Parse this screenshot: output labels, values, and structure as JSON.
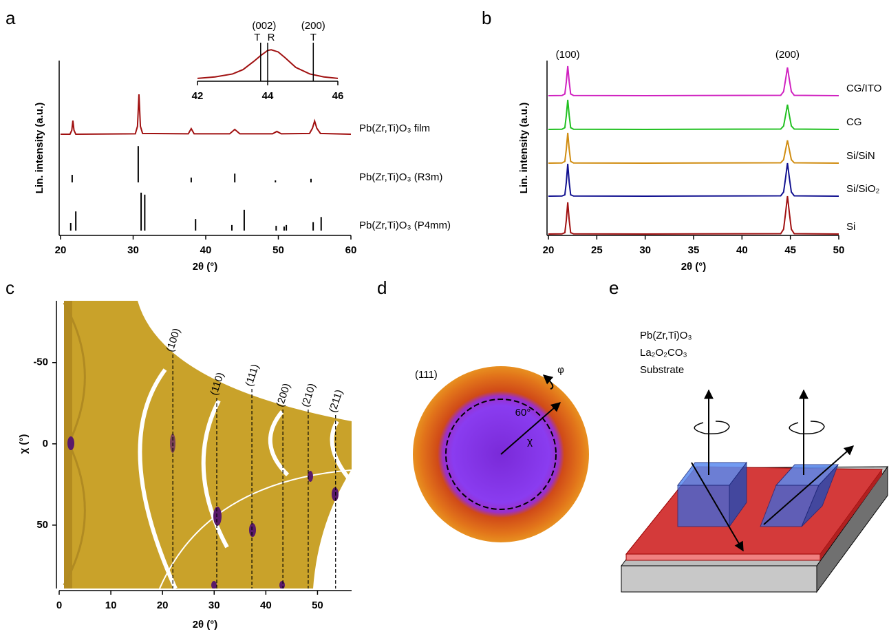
{
  "chart_data": [
    {
      "type": "line",
      "label": "a",
      "xlabel": "2θ (°)",
      "ylabel": "Lin. intensity (a.u.)",
      "xlim": [
        20,
        60
      ],
      "xticks": [
        20,
        30,
        40,
        50,
        60
      ],
      "ylim": [
        0,
        100
      ],
      "series": [
        {
          "name": "Pb(Zr,Ti)O₃ film",
          "color": "#a01010",
          "x": [
            20,
            21.3,
            21.55,
            21.7,
            21.85,
            22.1,
            30.3,
            30.6,
            30.8,
            31,
            31.3,
            37.6,
            38,
            38.4,
            43.3,
            44,
            44.7,
            49.2,
            49.8,
            50.4,
            54.3,
            54.7,
            55,
            55.3,
            55.8,
            60
          ],
          "values": [
            0,
            0,
            10,
            34,
            10,
            0,
            1,
            20,
            100,
            20,
            2,
            1,
            14,
            1,
            1,
            12,
            1,
            1,
            7,
            1,
            2,
            15,
            33,
            15,
            2,
            0
          ]
        }
      ],
      "sticks": [
        {
          "name": "Pb(Zr,Ti)O₃ (R3m)",
          "color": "#000000",
          "x": [
            21.6,
            30.7,
            38,
            44,
            49.6,
            54.5
          ],
          "values": [
            19,
            91,
            12,
            22,
            5,
            9
          ]
        },
        {
          "name": "Pb(Zr,Ti)O₃ (P4mm)",
          "color": "#000000",
          "x": [
            21.4,
            22.1,
            31.1,
            31.6,
            38.6,
            43.6,
            45.3,
            49.7,
            50.8,
            51.1,
            54.8,
            55.9
          ],
          "values": [
            19,
            48,
            95,
            90,
            29,
            14,
            52,
            12,
            10,
            14,
            21,
            34
          ]
        }
      ],
      "inset": {
        "xlim": [
          42,
          46
        ],
        "xticks": [
          42,
          44,
          46
        ],
        "ylim": [
          0,
          45
        ],
        "color": "#a01010",
        "x": [
          42,
          42.5,
          43,
          43.3,
          43.6,
          43.8,
          44,
          44.1,
          44.3,
          44.5,
          44.8,
          45.2,
          45.6,
          46
        ],
        "values": [
          2,
          4,
          8,
          14,
          25,
          33,
          40,
          41,
          38,
          30,
          17,
          8,
          4,
          2
        ],
        "markers": [
          {
            "label": "(002)",
            "lines": [
              {
                "x": 43.8,
                "label": "T"
              },
              {
                "x": 44.0,
                "label": "R"
              }
            ]
          },
          {
            "label": "(200)",
            "lines": [
              {
                "x": 45.3,
                "label": "T"
              }
            ]
          }
        ]
      }
    },
    {
      "type": "line",
      "label": "b",
      "xlabel": "2θ (°)",
      "ylabel": "Lin. intensity (a.u.)",
      "xlim": [
        20,
        50
      ],
      "xticks": [
        20,
        25,
        30,
        35,
        40,
        45,
        50
      ],
      "ylim": [
        0,
        100
      ],
      "annotations": [
        {
          "text": "(100)",
          "x": 22
        },
        {
          "text": "(200)",
          "x": 44.7
        }
      ],
      "series": [
        {
          "name": "Si",
          "color": "#a01010",
          "x": [
            20,
            21.4,
            21.7,
            21.85,
            22,
            22.15,
            22.3,
            22.6,
            30,
            44,
            44.3,
            44.5,
            44.7,
            44.9,
            45.1,
            45.4,
            50
          ],
          "values": [
            0,
            0.5,
            4,
            40,
            92,
            40,
            4,
            0.5,
            0,
            1,
            14,
            60,
            110,
            60,
            14,
            1,
            0
          ]
        },
        {
          "name": "Si/SiO₂",
          "color": "#101090",
          "x": [
            20,
            21.4,
            21.7,
            21.85,
            22,
            22.15,
            22.3,
            22.6,
            30,
            44,
            44.3,
            44.5,
            44.7,
            44.9,
            45.1,
            45.4,
            50
          ],
          "values": [
            0,
            0.5,
            4,
            40,
            94,
            40,
            4,
            0.5,
            0,
            1,
            12,
            52,
            96,
            52,
            12,
            1,
            0
          ]
        },
        {
          "name": "Si/SiN",
          "color": "#d08c10",
          "x": [
            20,
            21.4,
            21.7,
            21.85,
            22,
            22.15,
            22.3,
            22.6,
            30,
            44,
            44.3,
            44.5,
            44.7,
            44.9,
            45.1,
            45.4,
            50
          ],
          "values": [
            0,
            0.5,
            5,
            40,
            88,
            40,
            5,
            0.5,
            0,
            1,
            10,
            38,
            66,
            38,
            10,
            1,
            0
          ]
        },
        {
          "name": "CG",
          "color": "#20c020",
          "x": [
            20,
            21.4,
            21.7,
            21.85,
            22,
            22.15,
            22.3,
            22.6,
            30,
            44,
            44.3,
            44.5,
            44.7,
            44.9,
            45.1,
            45.4,
            50
          ],
          "values": [
            0,
            0.5,
            5,
            40,
            86,
            40,
            5,
            0.5,
            0,
            1,
            10,
            40,
            72,
            40,
            10,
            1,
            0
          ]
        },
        {
          "name": "CG/ITO",
          "color": "#d020c0",
          "x": [
            20,
            21.4,
            21.7,
            21.85,
            22,
            22.15,
            22.3,
            22.6,
            30,
            44,
            44.3,
            44.5,
            44.7,
            44.9,
            45.1,
            45.4,
            50
          ],
          "values": [
            0,
            0.5,
            5,
            40,
            86,
            40,
            5,
            0.5,
            0,
            1,
            12,
            46,
            82,
            46,
            12,
            1,
            0
          ]
        }
      ]
    },
    {
      "type": "heatmap",
      "label": "c",
      "xlabel": "2θ (°)",
      "ylabel": "χ (°)",
      "xlim": [
        0,
        56.6
      ],
      "xticks": [
        0,
        10,
        20,
        30,
        40,
        50
      ],
      "ylim": [
        89,
        -88
      ],
      "yticks": [
        -50,
        0,
        50
      ],
      "reflections": [
        {
          "label": "(100)",
          "x": 22
        },
        {
          "label": "(110)",
          "x": 30.5
        },
        {
          "label": "(111)",
          "x": 37.3
        },
        {
          "label": "(200)",
          "x": 43.3
        },
        {
          "label": "(210)",
          "x": 48.2
        },
        {
          "label": "(211)",
          "x": 53.5
        }
      ]
    }
  ],
  "pole_figure": {
    "label": "d",
    "title": "(111)",
    "angle": "60°",
    "chi": "χ",
    "phi": "φ"
  },
  "diagram": {
    "label": "e",
    "legend": [
      {
        "text": "Pb(Zr,Ti)O₃",
        "color": "#1a1aa0"
      },
      {
        "text": "La₂O₂CO₃",
        "color": "#b01010"
      },
      {
        "text": "Substrate",
        "color": "#808080"
      }
    ]
  }
}
